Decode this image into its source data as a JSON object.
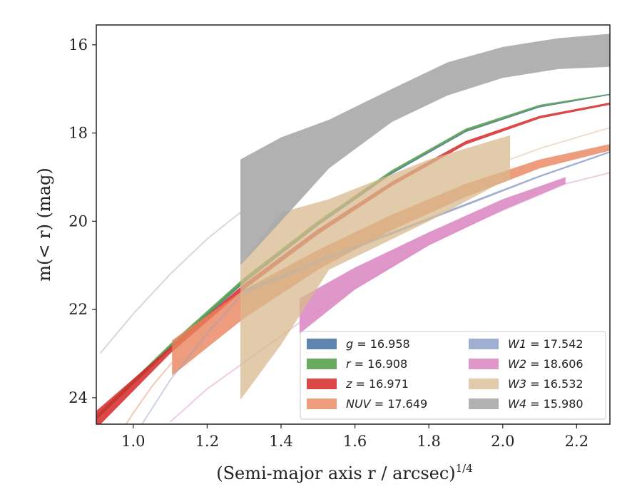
{
  "chart_data": {
    "type": "area",
    "xlabel": "(Semi-major axis r / arcsec)",
    "xlabel_sup": "1/4",
    "ylabel": "m(< r) (mag)",
    "xlim": [
      0.9,
      2.29
    ],
    "ylim": [
      24.6,
      15.55
    ],
    "y_inverted": true,
    "xticks": [
      1.0,
      1.2,
      1.4,
      1.6,
      1.8,
      2.0,
      2.2
    ],
    "xtick_labels": [
      "1.0",
      "1.2",
      "1.4",
      "1.6",
      "1.8",
      "2.0",
      "2.2"
    ],
    "yticks": [
      16,
      18,
      20,
      22,
      24
    ],
    "ytick_labels": [
      "16",
      "18",
      "20",
      "22",
      "24"
    ],
    "grid": false,
    "legend_position": "lower-right",
    "legend_columns": 2,
    "series": [
      {
        "label": "g = 16.958",
        "color": "#4e79a7",
        "opacity": 0.9,
        "x": [
          0.9,
          1.1,
          1.3,
          1.5,
          1.7,
          1.9,
          2.1,
          2.29
        ],
        "upper": [
          24.5,
          22.9,
          21.4,
          20.1,
          18.93,
          17.98,
          17.42,
          17.14
        ],
        "lower": [
          24.45,
          22.82,
          21.33,
          20.04,
          18.88,
          17.94,
          17.39,
          17.12
        ],
        "extrap_x": [],
        "extrap_y": []
      },
      {
        "label": "r = 16.908",
        "color": "#59a14f",
        "opacity": 0.9,
        "x": [
          0.9,
          1.1,
          1.3,
          1.5,
          1.7,
          1.9,
          2.1,
          2.29
        ],
        "upper": [
          24.5,
          22.88,
          21.38,
          20.07,
          18.9,
          17.96,
          17.4,
          17.13
        ],
        "lower": [
          24.4,
          22.78,
          21.28,
          19.99,
          18.84,
          17.9,
          17.36,
          17.11
        ],
        "extrap_x": [],
        "extrap_y": []
      },
      {
        "label": "z = 16.971",
        "color": "#d62728",
        "opacity": 0.85,
        "x": [
          0.9,
          1.1,
          1.3,
          1.5,
          1.7,
          1.9,
          2.1,
          2.29
        ],
        "upper": [
          24.7,
          23.0,
          21.55,
          20.3,
          19.2,
          18.26,
          17.67,
          17.36
        ],
        "lower": [
          24.3,
          22.85,
          21.42,
          20.18,
          19.1,
          18.18,
          17.61,
          17.31
        ],
        "extrap_x": [],
        "extrap_y": []
      },
      {
        "label": "NUV = 17.649",
        "color": "#e8855d",
        "opacity": 0.8,
        "x": [
          1.105,
          1.3,
          1.5,
          1.7,
          1.9,
          2.1,
          2.29
        ],
        "upper": [
          23.5,
          22.2,
          21.1,
          20.2,
          19.45,
          18.8,
          18.4
        ],
        "lower": [
          22.7,
          21.55,
          20.65,
          19.85,
          19.15,
          18.6,
          18.25
        ],
        "extrap_x": [
          0.95,
          1.0,
          1.05,
          1.105
        ],
        "extrap_y": [
          25.0,
          24.35,
          23.75,
          23.2
        ]
      },
      {
        "label": "W1 = 17.542",
        "color": "#8ea0c9",
        "opacity": 0.85,
        "x": [
          1.3,
          1.5,
          1.7,
          1.9,
          2.1,
          2.29
        ],
        "upper": [
          21.65,
          20.95,
          20.3,
          19.65,
          19.0,
          18.45
        ],
        "lower": [
          21.55,
          20.88,
          20.24,
          19.6,
          18.96,
          18.41
        ],
        "extrap_x": [
          1.02,
          1.1,
          1.2,
          1.3
        ],
        "extrap_y": [
          24.65,
          23.6,
          22.55,
          21.6
        ]
      },
      {
        "label": "W2 = 18.606",
        "color": "#dc8cc3",
        "opacity": 0.9,
        "x": [
          1.45,
          1.6,
          1.8,
          2.0,
          2.17
        ],
        "upper": [
          22.55,
          21.55,
          20.55,
          19.75,
          19.15
        ],
        "lower": [
          21.75,
          21.05,
          20.25,
          19.5,
          19.0
        ],
        "extrap_x": [
          1.1,
          1.2,
          1.3,
          1.45,
          1.6,
          1.8,
          2.0,
          2.17,
          2.29
        ],
        "extrap_y": [
          24.55,
          23.8,
          23.2,
          22.3,
          21.5,
          20.5,
          19.75,
          19.15,
          18.9
        ]
      },
      {
        "label": "W3 = 16.532",
        "color": "#d8b98d",
        "opacity": 0.75,
        "x": [
          1.29,
          1.4,
          1.53,
          1.8,
          2.0,
          2.02
        ],
        "upper": [
          24.05,
          22.8,
          21.1,
          20.0,
          19.1,
          19.05
        ],
        "lower": [
          21.0,
          19.8,
          19.5,
          18.6,
          18.1,
          18.05
        ],
        "extrap_x": [
          2.02,
          2.1,
          2.2,
          2.29
        ],
        "extrap_y": [
          18.6,
          18.35,
          18.1,
          17.88
        ]
      },
      {
        "label": "W4 = 15.980",
        "color": "#a9a9a9",
        "opacity": 0.9,
        "x": [
          1.29,
          1.4,
          1.53,
          1.7,
          1.85,
          2.0,
          2.15,
          2.29
        ],
        "upper": [
          21.0,
          20.0,
          18.8,
          17.75,
          17.15,
          16.75,
          16.55,
          16.5
        ],
        "lower": [
          18.6,
          18.1,
          17.7,
          17.0,
          16.4,
          16.05,
          15.85,
          15.75
        ],
        "extrap_x": [
          0.91,
          1.0,
          1.1,
          1.2,
          1.29
        ],
        "extrap_y": [
          23.0,
          22.1,
          21.2,
          20.4,
          19.8
        ]
      }
    ]
  }
}
